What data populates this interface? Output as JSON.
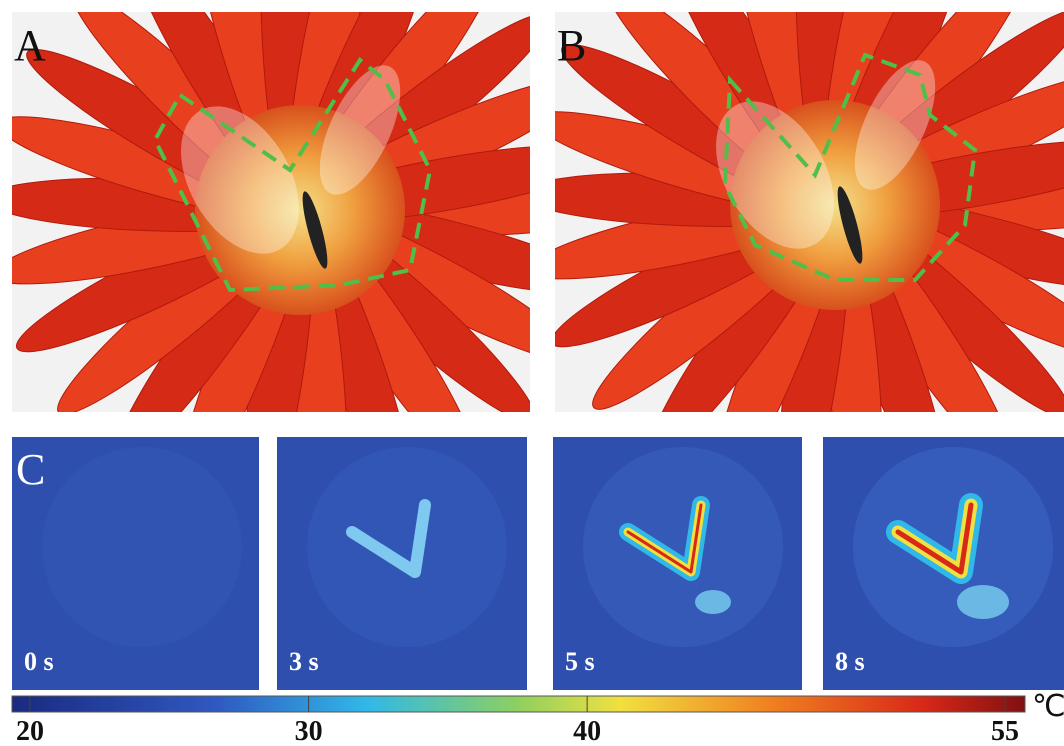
{
  "panels": {
    "a": {
      "label": "A"
    },
    "b": {
      "label": "B"
    },
    "c": {
      "label": "C"
    }
  },
  "frames": [
    {
      "label": "0 s"
    },
    {
      "label": "3 s"
    },
    {
      "label": "5 s"
    },
    {
      "label": "8 s"
    }
  ],
  "colorbar": {
    "ticks": [
      20,
      30,
      40,
      55
    ],
    "unit": "℃"
  }
}
